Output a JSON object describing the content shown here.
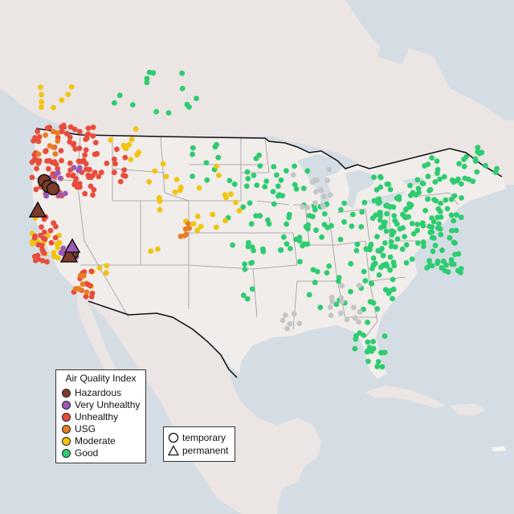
{
  "legend": {
    "title": "Air Quality Index",
    "categories": [
      {
        "label": "Hazardous",
        "color": "#7e3b2b"
      },
      {
        "label": "Very Unhealthy",
        "color": "#9b59b6"
      },
      {
        "label": "Unhealthy",
        "color": "#e74c3c"
      },
      {
        "label": "USG",
        "color": "#e67e22"
      },
      {
        "label": "Moderate",
        "color": "#f1c40f"
      },
      {
        "label": "Good",
        "color": "#2ecc71"
      }
    ]
  },
  "shape_legend": {
    "temporary": {
      "label": "temporary",
      "icon": "circle-icon"
    },
    "permanent": {
      "label": "permanent",
      "icon": "triangle-icon"
    }
  },
  "colors": {
    "water": "#d4dde3",
    "land": "#ece8e5",
    "us_land": "#f0ede9",
    "no_data": "#c5c5c5",
    "border": "#111111"
  }
}
